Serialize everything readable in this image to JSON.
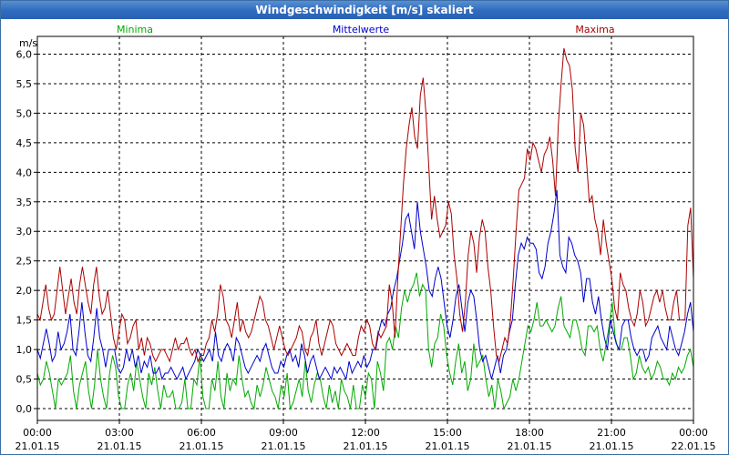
{
  "window": {
    "title": "Windgeschwindigkeit [m/s] skaliert"
  },
  "chart_data": {
    "type": "line",
    "title": "Windgeschwindigkeit [m/s] skaliert",
    "ylabel": "m/s",
    "ylim": [
      -0.2,
      6.3
    ],
    "grid": true,
    "y_ticks": [
      "0,0",
      "0,5",
      "1,0",
      "1,5",
      "2,0",
      "2,5",
      "3,0",
      "3,5",
      "4,0",
      "4,5",
      "5,0",
      "5,5",
      "6,0"
    ],
    "x_ticks": [
      {
        "time": "00:00",
        "date": "21.01.15"
      },
      {
        "time": "03:00",
        "date": "21.01.15"
      },
      {
        "time": "06:00",
        "date": "21.01.15"
      },
      {
        "time": "09:00",
        "date": "21.01.15"
      },
      {
        "time": "12:00",
        "date": "21.01.15"
      },
      {
        "time": "15:00",
        "date": "21.01.15"
      },
      {
        "time": "18:00",
        "date": "21.01.15"
      },
      {
        "time": "21:00",
        "date": "21.01.15"
      },
      {
        "time": "00:00",
        "date": "22.01.15"
      }
    ],
    "legend_placement": "top",
    "series": [
      {
        "name": "Minima",
        "color": "#00aa00",
        "values": [
          0.6,
          0.4,
          0.5,
          0.8,
          0.6,
          0.3,
          0.0,
          0.5,
          0.4,
          0.5,
          0.6,
          0.9,
          0.3,
          0.0,
          0.4,
          0.6,
          0.8,
          0.3,
          0.0,
          0.4,
          1.0,
          0.5,
          0.2,
          0.0,
          0.6,
          0.9,
          0.7,
          0.2,
          0.0,
          0.0,
          0.4,
          0.6,
          0.3,
          0.8,
          0.5,
          0.2,
          0.0,
          0.6,
          0.4,
          0.7,
          0.3,
          0.0,
          0.4,
          0.2,
          0.2,
          0.3,
          0.0,
          0.0,
          0.1,
          0.5,
          0.0,
          0.0,
          0.5,
          0.4,
          0.9,
          0.2,
          0.0,
          0.0,
          0.5,
          0.3,
          0.8,
          0.2,
          0.0,
          0.6,
          0.3,
          0.5,
          0.4,
          0.9,
          0.5,
          0.2,
          0.3,
          0.1,
          0.0,
          0.4,
          0.2,
          0.4,
          0.7,
          0.5,
          0.3,
          0.2,
          0.0,
          0.4,
          0.2,
          0.6,
          0.0,
          0.1,
          0.3,
          0.5,
          0.2,
          0.8,
          0.3,
          0.1,
          0.4,
          0.6,
          0.5,
          0.2,
          0.0,
          0.4,
          0.1,
          0.3,
          0.0,
          0.5,
          0.3,
          0.2,
          0.0,
          0.4,
          0.0,
          0.0,
          0.4,
          0.2,
          0.6,
          0.5,
          0.0,
          0.8,
          0.6,
          0.3,
          1.1,
          1.2,
          1.0,
          1.4,
          1.2,
          1.7,
          2.0,
          1.8,
          2.0,
          2.1,
          2.3,
          1.9,
          2.1,
          2.0,
          1.0,
          0.7,
          1.1,
          1.2,
          1.6,
          1.4,
          0.9,
          0.6,
          0.4,
          0.8,
          1.1,
          0.6,
          0.8,
          0.3,
          0.5,
          1.1,
          0.7,
          0.8,
          0.9,
          0.5,
          0.2,
          0.4,
          0.0,
          0.5,
          0.3,
          0.0,
          0.1,
          0.2,
          0.5,
          0.3,
          0.5,
          0.8,
          1.1,
          1.4,
          1.3,
          1.5,
          1.8,
          1.4,
          1.4,
          1.5,
          1.4,
          1.3,
          1.4,
          1.7,
          1.9,
          1.4,
          1.3,
          1.2,
          1.5,
          1.5,
          1.3,
          1.0,
          0.9,
          1.4,
          1.4,
          1.3,
          1.4,
          1.0,
          0.8,
          1.1,
          1.4,
          1.8,
          1.2,
          1.0,
          1.0,
          1.2,
          1.2,
          0.9,
          0.5,
          0.6,
          0.9,
          0.7,
          0.6,
          0.7,
          0.5,
          0.6,
          0.8,
          0.7,
          0.5,
          0.5,
          0.4,
          0.6,
          0.5,
          0.7,
          0.6,
          0.7,
          0.9,
          1.0,
          0.7
        ]
      },
      {
        "name": "Mittelwerte",
        "color": "#0000cc",
        "values": [
          1.0,
          0.85,
          1.1,
          1.35,
          1.1,
          0.8,
          0.9,
          1.3,
          1.0,
          1.1,
          1.3,
          1.6,
          1.0,
          0.9,
          1.3,
          1.8,
          1.3,
          0.9,
          0.8,
          1.2,
          1.7,
          1.2,
          1.0,
          0.7,
          1.0,
          1.0,
          1.0,
          0.7,
          0.6,
          0.7,
          1.0,
          0.8,
          1.0,
          0.7,
          0.9,
          0.6,
          0.8,
          0.7,
          0.9,
          0.6,
          0.6,
          0.7,
          0.5,
          0.6,
          0.6,
          0.7,
          0.6,
          0.5,
          0.6,
          0.7,
          0.5,
          0.6,
          0.7,
          0.8,
          1.0,
          0.9,
          0.8,
          0.9,
          1.0,
          0.8,
          1.3,
          0.9,
          0.8,
          1.0,
          1.1,
          1.0,
          0.8,
          1.2,
          1.1,
          0.9,
          0.7,
          0.6,
          0.7,
          0.8,
          0.9,
          0.8,
          1.0,
          1.1,
          0.9,
          0.7,
          0.6,
          0.6,
          0.8,
          0.7,
          0.9,
          1.0,
          0.8,
          0.9,
          0.7,
          1.1,
          0.9,
          0.6,
          0.8,
          0.9,
          0.7,
          0.5,
          0.6,
          0.7,
          0.6,
          0.5,
          0.7,
          0.6,
          0.7,
          0.6,
          0.5,
          0.8,
          0.6,
          0.7,
          0.8,
          0.7,
          0.9,
          0.7,
          0.8,
          1.0,
          1.0,
          1.3,
          1.5,
          1.4,
          1.6,
          1.7,
          2.0,
          2.2,
          2.5,
          2.8,
          3.2,
          3.3,
          3.0,
          2.7,
          3.5,
          3.0,
          2.7,
          2.4,
          2.0,
          1.9,
          2.2,
          2.4,
          2.2,
          1.8,
          1.4,
          1.2,
          1.5,
          1.9,
          2.1,
          1.7,
          1.3,
          1.8,
          2.0,
          1.9,
          1.5,
          1.0,
          0.8,
          0.9,
          0.7,
          0.5,
          0.7,
          0.9,
          0.6,
          0.9,
          1.0,
          1.3,
          1.5,
          2.1,
          2.6,
          2.8,
          2.7,
          2.9,
          2.8,
          2.8,
          2.7,
          2.3,
          2.2,
          2.4,
          2.8,
          3.0,
          3.3,
          3.7,
          2.6,
          2.4,
          2.3,
          2.9,
          2.8,
          2.6,
          2.5,
          2.3,
          1.8,
          2.2,
          2.2,
          1.8,
          1.6,
          1.9,
          1.5,
          1.2,
          1.0,
          1.5,
          1.3,
          1.1,
          1.0,
          1.4,
          1.5,
          1.5,
          1.2,
          1.0,
          0.9,
          1.0,
          1.0,
          0.8,
          0.9,
          1.2,
          1.3,
          1.4,
          1.2,
          1.1,
          1.0,
          1.4,
          1.2,
          1.0,
          0.9,
          1.1,
          1.3,
          1.6,
          1.8,
          1.3
        ]
      },
      {
        "name": "Maxima",
        "color": "#aa0000",
        "values": [
          1.6,
          1.5,
          1.8,
          2.1,
          1.7,
          1.5,
          1.6,
          2.0,
          2.4,
          2.0,
          1.6,
          1.9,
          2.2,
          1.8,
          1.6,
          2.1,
          2.4,
          2.1,
          1.8,
          1.6,
          2.1,
          2.4,
          1.9,
          1.6,
          1.7,
          2.0,
          1.6,
          1.2,
          1.0,
          1.3,
          1.6,
          1.5,
          1.1,
          1.2,
          1.4,
          1.5,
          1.0,
          1.2,
          0.9,
          1.2,
          1.1,
          0.9,
          0.8,
          0.9,
          1.0,
          1.0,
          0.9,
          0.8,
          1.0,
          1.2,
          1.0,
          1.1,
          1.1,
          1.2,
          1.0,
          0.9,
          1.0,
          0.8,
          0.9,
          0.9,
          1.1,
          1.2,
          1.5,
          1.3,
          1.6,
          2.1,
          1.9,
          1.5,
          1.4,
          1.2,
          1.5,
          1.8,
          1.3,
          1.5,
          1.3,
          1.2,
          1.3,
          1.5,
          1.7,
          1.9,
          1.8,
          1.5,
          1.4,
          1.2,
          1.0,
          1.2,
          1.4,
          1.2,
          1.0,
          0.9,
          1.0,
          1.1,
          1.2,
          1.4,
          1.3,
          1.0,
          0.9,
          1.2,
          1.3,
          1.5,
          1.1,
          0.9,
          1.1,
          1.3,
          1.5,
          1.4,
          1.1,
          1.0,
          0.9,
          1.0,
          1.1,
          1.0,
          0.9,
          0.9,
          1.2,
          1.4,
          1.3,
          1.5,
          1.4,
          1.1,
          1.0,
          1.3,
          1.2,
          1.3,
          1.4,
          2.1,
          1.8,
          1.2,
          2.2,
          3.0,
          3.8,
          4.4,
          4.8,
          5.1,
          4.6,
          4.4,
          5.3,
          5.6,
          5.0,
          4.1,
          3.2,
          3.6,
          3.2,
          2.9,
          3.0,
          3.1,
          3.5,
          3.3,
          2.6,
          2.2,
          1.6,
          1.3,
          1.8,
          2.6,
          3.0,
          2.8,
          2.3,
          2.9,
          3.2,
          3.0,
          2.4,
          2.0,
          1.4,
          0.9,
          0.8,
          1.0,
          1.2,
          1.1,
          1.5,
          2.2,
          3.0,
          3.7,
          3.8,
          3.9,
          4.4,
          4.2,
          4.5,
          4.4,
          4.2,
          4.0,
          4.3,
          4.4,
          4.6,
          4.2,
          3.6,
          4.8,
          5.5,
          6.1,
          5.9,
          5.8,
          5.4,
          4.4,
          4.0,
          5.0,
          4.8,
          4.2,
          3.5,
          3.6,
          3.2,
          3.0,
          2.6,
          3.2,
          2.8,
          2.5,
          2.2,
          1.7,
          1.5,
          2.3,
          2.1,
          2.0,
          1.7,
          1.5,
          1.4,
          1.6,
          2.0,
          1.8,
          1.4,
          1.5,
          1.7,
          1.9,
          2.0,
          1.8,
          2.0,
          1.7,
          1.5,
          1.5,
          1.8,
          2.0,
          1.5,
          1.5,
          1.5,
          3.1,
          3.4,
          2.2
        ]
      }
    ]
  }
}
